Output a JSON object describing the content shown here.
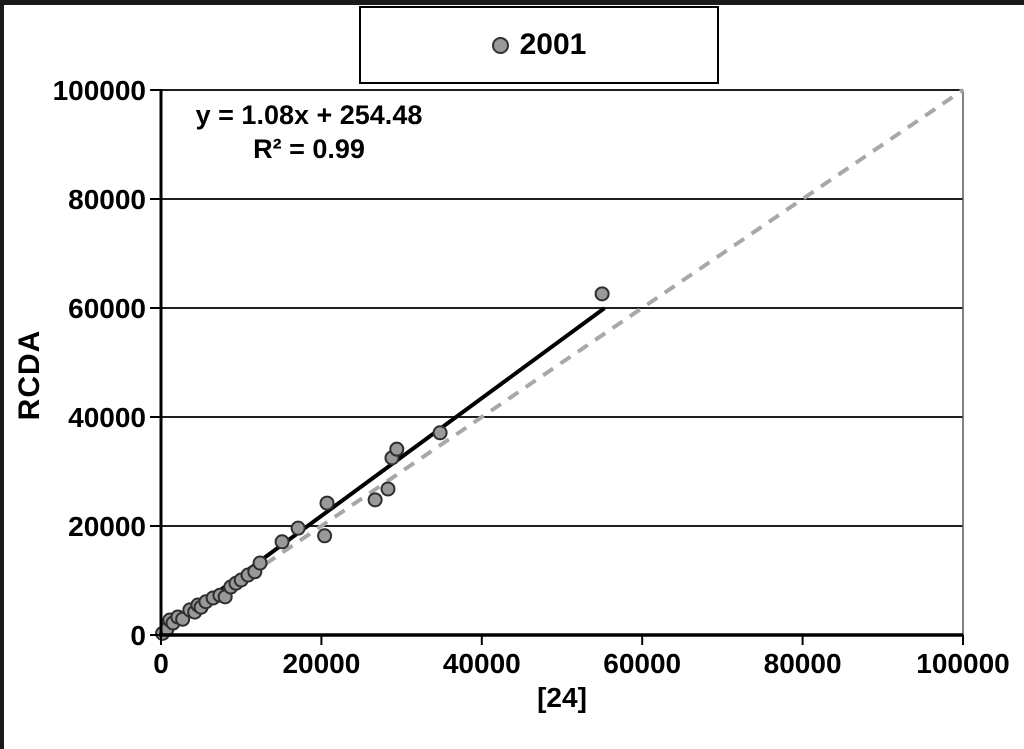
{
  "chart_data": {
    "type": "scatter",
    "legend": {
      "label": "2001",
      "position": "top-center"
    },
    "xlabel": "[24]",
    "ylabel": "RCDA",
    "xlim": [
      0,
      100000
    ],
    "ylim": [
      0,
      100000
    ],
    "x_ticks": [
      0,
      20000,
      40000,
      60000,
      80000,
      100000
    ],
    "y_ticks": [
      0,
      20000,
      40000,
      60000,
      80000,
      100000
    ],
    "grid": "horizontal",
    "annotation": {
      "equation": "y = 1.08x + 254.48",
      "r_squared": "R² = 0.99"
    },
    "series": [
      {
        "name": "2001",
        "marker": "circle",
        "points": [
          [
            200,
            300
          ],
          [
            750,
            1100
          ],
          [
            1100,
            2750
          ],
          [
            1500,
            2200
          ],
          [
            2100,
            3300
          ],
          [
            2700,
            2900
          ],
          [
            3600,
            4600
          ],
          [
            4200,
            4200
          ],
          [
            4600,
            5500
          ],
          [
            5000,
            5100
          ],
          [
            5600,
            6100
          ],
          [
            6500,
            6800
          ],
          [
            7350,
            7300
          ],
          [
            8000,
            7000
          ],
          [
            8700,
            8800
          ],
          [
            9350,
            9500
          ],
          [
            10000,
            10100
          ],
          [
            10850,
            11000
          ],
          [
            11700,
            11600
          ],
          [
            12350,
            13200
          ],
          [
            15100,
            17100
          ],
          [
            17100,
            19600
          ],
          [
            20400,
            18200
          ],
          [
            20700,
            24200
          ],
          [
            26700,
            24800
          ],
          [
            28300,
            26800
          ],
          [
            28800,
            32500
          ],
          [
            29400,
            34100
          ],
          [
            34800,
            37100
          ],
          [
            55000,
            62600
          ]
        ]
      }
    ],
    "trend_line": {
      "slope": 1.08,
      "intercept": 254.48,
      "x_start": 0,
      "x_end": 55300,
      "color": "#000000"
    },
    "identity_line": {
      "from": [
        0,
        0
      ],
      "to": [
        100000,
        100000
      ],
      "style": "dashed",
      "color": "#a8a8a8"
    },
    "colors": {
      "marker_fill": "#999999",
      "marker_stroke": "#2e2e2e",
      "grid": "#1f1f1f",
      "axis": "#000000",
      "plot_right_border": "#595959",
      "text": "#000000"
    }
  }
}
